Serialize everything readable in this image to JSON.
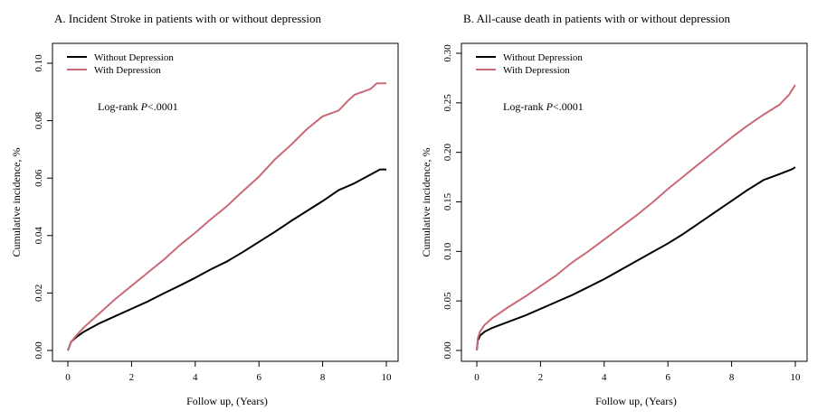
{
  "chart_data": [
    {
      "type": "line",
      "title": "A. Incident Stroke in patients with or without depression",
      "xlabel": "Follow up, (Years)",
      "ylabel": "Cumulative incidence, %",
      "xlim": [
        0,
        10
      ],
      "ylim": [
        0,
        0.1
      ],
      "x_ticks": [
        "0",
        "2",
        "4",
        "6",
        "8",
        "10"
      ],
      "y_ticks": [
        "0.00",
        "0.02",
        "0.04",
        "0.06",
        "0.08",
        "0.10"
      ],
      "grid": false,
      "legend_position": "top-left",
      "annotation": {
        "prefix": "Log-rank ",
        "italic": "P",
        "suffix": "<.0001"
      },
      "series": [
        {
          "name": "Without Depression",
          "color": "#000000",
          "x": [
            0,
            0.1,
            0.25,
            0.5,
            1,
            1.5,
            2,
            2.5,
            3,
            3.5,
            4,
            4.5,
            5,
            5.5,
            6,
            6.5,
            7,
            7.5,
            8,
            8.5,
            9,
            9.5,
            9.8,
            10
          ],
          "y": [
            0,
            0.003,
            0.0045,
            0.0065,
            0.0095,
            0.012,
            0.0145,
            0.017,
            0.0198,
            0.0225,
            0.0253,
            0.0283,
            0.031,
            0.0343,
            0.0378,
            0.0413,
            0.045,
            0.0485,
            0.052,
            0.0558,
            0.0582,
            0.0612,
            0.063,
            0.063
          ]
        },
        {
          "name": "With Depression",
          "color": "#c96a78",
          "x": [
            0,
            0.1,
            0.25,
            0.5,
            1,
            1.5,
            2,
            2.5,
            3,
            3.5,
            4,
            4.5,
            5,
            5.5,
            6,
            6.5,
            7,
            7.5,
            8,
            8.5,
            8.8,
            9,
            9.5,
            9.7,
            10
          ],
          "y": [
            0,
            0.003,
            0.005,
            0.008,
            0.013,
            0.018,
            0.0225,
            0.027,
            0.0315,
            0.0365,
            0.041,
            0.0458,
            0.0503,
            0.0555,
            0.0605,
            0.0665,
            0.0715,
            0.077,
            0.0815,
            0.0835,
            0.087,
            0.089,
            0.091,
            0.093,
            0.093
          ]
        }
      ]
    },
    {
      "type": "line",
      "title": "B. All-cause death in patients with or without depression",
      "xlabel": "Follow up, (Years)",
      "ylabel": "Cumulative incidence, %",
      "xlim": [
        0,
        10
      ],
      "ylim": [
        0,
        0.3
      ],
      "x_ticks": [
        "0",
        "2",
        "4",
        "6",
        "8",
        "10"
      ],
      "y_ticks": [
        "0.00",
        "0.05",
        "0.10",
        "0.15",
        "0.20",
        "0.25",
        "0.30"
      ],
      "grid": false,
      "legend_position": "top-left",
      "annotation": {
        "prefix": "Log-rank ",
        "italic": "P",
        "suffix": "<.0001"
      },
      "series": [
        {
          "name": "Without Depression",
          "color": "#000000",
          "x": [
            0,
            0.03,
            0.1,
            0.25,
            0.5,
            1,
            1.5,
            2,
            2.5,
            3,
            3.5,
            4,
            4.5,
            5,
            5.5,
            6,
            6.5,
            7,
            7.5,
            8,
            8.5,
            9,
            9.5,
            9.9,
            10
          ],
          "y": [
            0,
            0.01,
            0.015,
            0.019,
            0.023,
            0.029,
            0.035,
            0.042,
            0.049,
            0.056,
            0.064,
            0.072,
            0.081,
            0.09,
            0.099,
            0.108,
            0.118,
            0.129,
            0.14,
            0.151,
            0.162,
            0.172,
            0.178,
            0.183,
            0.185
          ]
        },
        {
          "name": "With Depression",
          "color": "#c96a78",
          "x": [
            0,
            0.03,
            0.1,
            0.25,
            0.5,
            1,
            1.5,
            2,
            2.5,
            3,
            3.5,
            4,
            4.5,
            5,
            5.5,
            6,
            6.5,
            7,
            7.5,
            8,
            8.5,
            9,
            9.5,
            9.8,
            10
          ],
          "y": [
            0,
            0.012,
            0.019,
            0.026,
            0.033,
            0.044,
            0.054,
            0.065,
            0.076,
            0.089,
            0.1,
            0.112,
            0.124,
            0.136,
            0.149,
            0.163,
            0.176,
            0.189,
            0.202,
            0.215,
            0.227,
            0.238,
            0.248,
            0.258,
            0.268
          ]
        }
      ]
    }
  ]
}
